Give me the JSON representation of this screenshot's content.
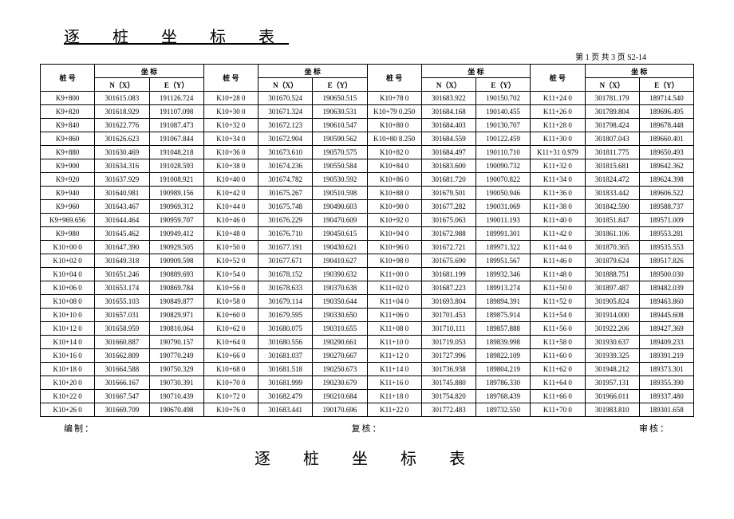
{
  "title": "逐 桩 坐 标 表",
  "title2": "逐 桩 坐 标 表",
  "page_info": "第 1 页  共 3 页  S2-14",
  "footer": {
    "left": "编制：",
    "mid": "复核：",
    "right": "审核："
  },
  "hdr": {
    "pile": "桩    号",
    "coord": "坐    标",
    "nx": "N（X）",
    "ey": "E（Y）"
  },
  "rows": [
    [
      "K9+800",
      "301615.083",
      "191126.724",
      "K10+28 0",
      "301670.524",
      "190650.515",
      "K10+78 0",
      "301683.922",
      "190150.702",
      "K11+24 0",
      "301781.179",
      "189714.540"
    ],
    [
      "K9+820",
      "301618.929",
      "191107.098",
      "K10+30 0",
      "301671.324",
      "190630.531",
      "K10+79 0.250",
      "301684.168",
      "190140.455",
      "K11+26 0",
      "301789.804",
      "189696.495"
    ],
    [
      "K9+840",
      "301622.776",
      "191087.473",
      "K10+32 0",
      "301672.123",
      "190610.547",
      "K10+80 0",
      "301684.403",
      "190130.707",
      "K11+28 0",
      "301798.424",
      "189678.448"
    ],
    [
      "K9+860",
      "301626.623",
      "191067.844",
      "K10+34 0",
      "301672.904",
      "190590.562",
      "K10+80 8.250",
      "301684.559",
      "190122.459",
      "K11+30 0",
      "301807.043",
      "189660.401"
    ],
    [
      "K9+880",
      "301630.469",
      "191048.218",
      "K10+36 0",
      "301673.610",
      "190570.575",
      "K10+82 0",
      "301684.497",
      "190110.710",
      "K11+31 0.979",
      "301811.775",
      "189650.493"
    ],
    [
      "K9+900",
      "301634.316",
      "191028.593",
      "K10+38 0",
      "301674.236",
      "190550.584",
      "K10+84 0",
      "301683.600",
      "190090.732",
      "K11+32 0",
      "301815.681",
      "189642.362"
    ],
    [
      "K9+920",
      "301637.929",
      "191008.921",
      "K10+40 0",
      "301674.782",
      "190530.592",
      "K10+86 0",
      "301681.720",
      "190070.822",
      "K11+34 0",
      "301824.472",
      "189624.398"
    ],
    [
      "K9+940",
      "301640.981",
      "190989.156",
      "K10+42 0",
      "301675.267",
      "190510.598",
      "K10+88 0",
      "301679.501",
      "190050.946",
      "K11+36 0",
      "301833.442",
      "189606.522"
    ],
    [
      "K9+960",
      "301643.467",
      "190969.312",
      "K10+44 0",
      "301675.748",
      "190490.603",
      "K10+90 0",
      "301677.282",
      "190031.069",
      "K11+38 0",
      "301842.590",
      "189588.737"
    ],
    [
      "K9+969.656",
      "301644.464",
      "190959.707",
      "K10+46 0",
      "301676.229",
      "190470.609",
      "K10+92 0",
      "301675.063",
      "190011.193",
      "K11+40 0",
      "301851.847",
      "189571.009"
    ],
    [
      "K9+980",
      "301645.462",
      "190949.412",
      "K10+48 0",
      "301676.710",
      "190450.615",
      "K10+94 0",
      "301672.988",
      "189991.301",
      "K11+42 0",
      "301861.106",
      "189553.281"
    ],
    [
      "K10+00 0",
      "301647.390",
      "190929.505",
      "K10+50 0",
      "301677.191",
      "190430.621",
      "K10+96 0",
      "301672.721",
      "189971.322",
      "K11+44 0",
      "301870.365",
      "189535.553"
    ],
    [
      "K10+02 0",
      "301649.318",
      "190909.598",
      "K10+52 0",
      "301677.671",
      "190410.627",
      "K10+98 0",
      "301675.690",
      "189951.567",
      "K11+46 0",
      "301879.624",
      "189517.826"
    ],
    [
      "K10+04 0",
      "301651.246",
      "190889.693",
      "K10+54 0",
      "301678.152",
      "190390.632",
      "K11+00 0",
      "301681.199",
      "189932.346",
      "K11+48 0",
      "301888.751",
      "189500.030"
    ],
    [
      "K10+06 0",
      "301653.174",
      "190869.784",
      "K10+56 0",
      "301678.633",
      "190370.638",
      "K11+02 0",
      "301687.223",
      "189913.274",
      "K11+50 0",
      "301897.487",
      "189482.039"
    ],
    [
      "K10+08 0",
      "301655.103",
      "190849.877",
      "K10+58 0",
      "301679.114",
      "190350.644",
      "K11+04 0",
      "301693.804",
      "189894.391",
      "K11+52 0",
      "301905.824",
      "189463.860"
    ],
    [
      "K10+10 0",
      "301657.031",
      "190829.971",
      "K10+60 0",
      "301679.595",
      "190330.650",
      "K11+06 0",
      "301701.453",
      "189875.914",
      "K11+54 0",
      "301914.000",
      "189445.608"
    ],
    [
      "K10+12 0",
      "301658.959",
      "190810.064",
      "K10+62 0",
      "301680.075",
      "190310.655",
      "K11+08 0",
      "301710.111",
      "189857.888",
      "K11+56 0",
      "301922.206",
      "189427.369"
    ],
    [
      "K10+14 0",
      "301660.887",
      "190790.157",
      "K10+64 0",
      "301680.556",
      "190290.661",
      "K11+10 0",
      "301719.053",
      "189839.998",
      "K11+58 0",
      "301930.637",
      "189409.233"
    ],
    [
      "K10+16 0",
      "301662.809",
      "190770.249",
      "K10+66 0",
      "301681.037",
      "190270.667",
      "K11+12 0",
      "301727.996",
      "189822.109",
      "K11+60 0",
      "301939.325",
      "189391.219"
    ],
    [
      "K10+18 0",
      "301664.588",
      "190750.329",
      "K10+68 0",
      "301681.518",
      "190250.673",
      "K11+14 0",
      "301736.938",
      "189804.219",
      "K11+62 0",
      "301948.212",
      "189373.301"
    ],
    [
      "K10+20 0",
      "301666.167",
      "190730.391",
      "K10+70 0",
      "301681.999",
      "190230.679",
      "K11+16 0",
      "301745.880",
      "189786.330",
      "K11+64 0",
      "301957.131",
      "189355.390"
    ],
    [
      "K10+22 0",
      "301667.547",
      "190710.439",
      "K10+72 0",
      "301682.479",
      "190210.684",
      "K11+18 0",
      "301754.820",
      "189768.439",
      "K11+66 0",
      "301966.011",
      "189337.480"
    ],
    [
      "K10+26 0",
      "301669.709",
      "190670.498",
      "K10+76 0",
      "301683.441",
      "190170.696",
      "K11+22 0",
      "301772.483",
      "189732.550",
      "K11+70 0",
      "301983.810",
      "189301.658"
    ]
  ]
}
